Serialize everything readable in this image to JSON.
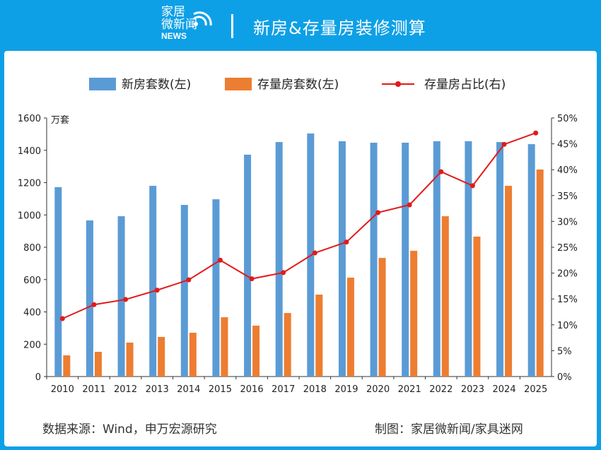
{
  "header": {
    "logo_line1": "家居",
    "logo_line2": "微新闻",
    "logo_line3": "NEWS",
    "title": "新房&存量房装修测算"
  },
  "footer": {
    "source": "数据来源：Wind，申万宏源研究",
    "credit": "制图：家居微新闻/家具迷网"
  },
  "colors": {
    "header_bg": "#0ea0e6",
    "new_house": "#5b9bd5",
    "stock_house": "#ed7d31",
    "ratio_line": "#e21a1a"
  },
  "chart_data": {
    "type": "bar+line",
    "categories": [
      "2010",
      "2011",
      "2012",
      "2013",
      "2014",
      "2015",
      "2016",
      "2017",
      "2018",
      "2019",
      "2020",
      "2021",
      "2022",
      "2023",
      "2024",
      "2025"
    ],
    "y_left": {
      "unit": "万套",
      "ylim": [
        0,
        1600
      ],
      "ticks": [
        "0",
        "200",
        "400",
        "600",
        "800",
        "1000",
        "1200",
        "1400",
        "1600"
      ]
    },
    "y_right": {
      "ylim": [
        0,
        50
      ],
      "ticks": [
        "0%",
        "5%",
        "10%",
        "15%",
        "20%",
        "25%",
        "30%",
        "35%",
        "40%",
        "45%",
        "50%"
      ]
    },
    "grid": false,
    "legend_position": "top",
    "series": [
      {
        "name": "新房套数(左)",
        "type": "bar",
        "axis": "left",
        "values": [
          1172,
          966,
          992,
          1180,
          1062,
          1097,
          1373,
          1451,
          1504,
          1456,
          1447,
          1447,
          1456,
          1456,
          1451,
          1438
        ]
      },
      {
        "name": "存量房套数(左)",
        "type": "bar",
        "axis": "left",
        "values": [
          131,
          153,
          210,
          245,
          271,
          367,
          315,
          393,
          507,
          612,
          734,
          778,
          992,
          866,
          1180,
          1281
        ]
      },
      {
        "name": "存量房占比(右)",
        "type": "line",
        "axis": "right",
        "values": [
          11.2,
          13.9,
          14.9,
          16.7,
          18.7,
          22.5,
          18.9,
          20.1,
          23.9,
          26.0,
          31.7,
          33.2,
          39.6,
          36.9,
          44.9,
          47.1
        ]
      }
    ]
  }
}
